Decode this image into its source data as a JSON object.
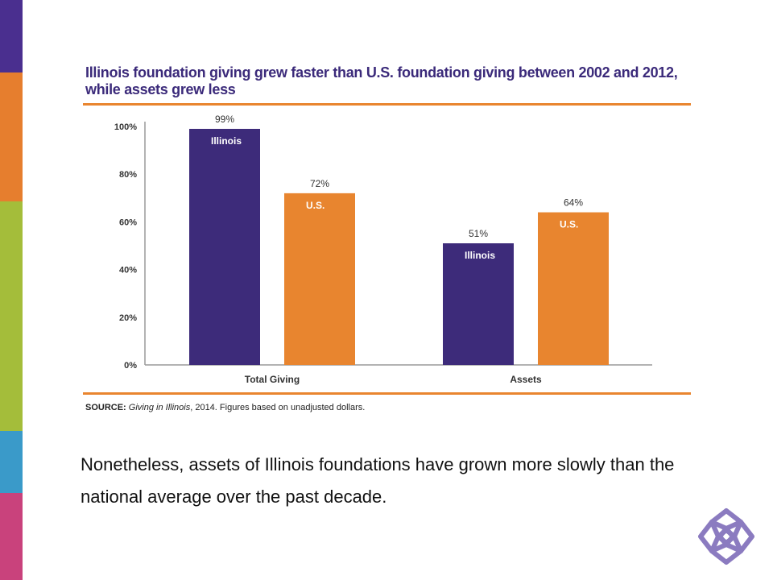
{
  "colors": {
    "strip": [
      "#4a2f8f",
      "#e67e2e",
      "#a4bd3a",
      "#3a9ac9",
      "#c9427c"
    ],
    "illinois": "#3d2b7a",
    "us": "#e8852f",
    "accent_rule": "#e9852f",
    "title": "#3b2a7a"
  },
  "chart_data": {
    "type": "bar",
    "title": "Illinois foundation giving grew faster than U.S. foundation giving between 2002 and 2012, while assets grew less",
    "categories": [
      "Total Giving",
      "Assets"
    ],
    "series": [
      {
        "name": "Illinois",
        "values": [
          99,
          51
        ],
        "labels": [
          "99%",
          "51%"
        ]
      },
      {
        "name": "U.S.",
        "values": [
          72,
          64
        ],
        "labels": [
          "72%",
          "64%"
        ]
      }
    ],
    "yticks": [
      "0%",
      "20%",
      "40%",
      "60%",
      "80%",
      "100%"
    ],
    "ylim": [
      0,
      100
    ],
    "grid": false,
    "source_label": "SOURCE:",
    "source_title": "Giving in Illinois",
    "source_rest": ", 2014. Figures based on unadjusted dollars."
  },
  "body_text": "Nonetheless, assets of Illinois foundations have grown more slowly than the national average over the past decade.",
  "logo_icon": "knot-logo-icon"
}
